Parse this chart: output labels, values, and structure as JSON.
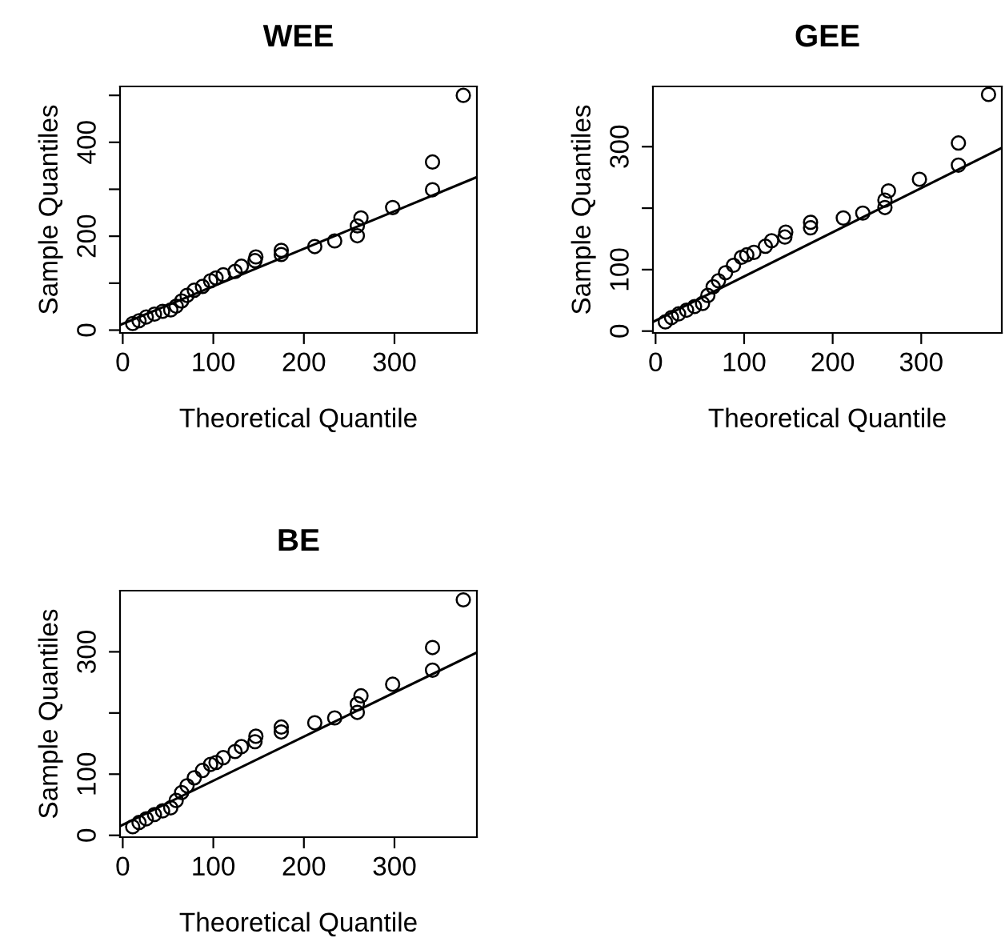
{
  "chart_data": [
    {
      "type": "scatter",
      "title": "WEE",
      "xlabel": "Theoretical Quantile",
      "ylabel": "Sample Quantiles",
      "grid": false,
      "legend": false,
      "xlim": [
        -3,
        391
      ],
      "ylim": [
        -6,
        519
      ],
      "xticks": [
        0,
        100,
        200,
        300
      ],
      "yticks": [
        0,
        {
          "value": 100,
          "label": null
        },
        200,
        {
          "value": 300,
          "label": null
        },
        400,
        {
          "value": 500,
          "label": null
        }
      ],
      "series": [
        {
          "color": "#000000",
          "marker": "circle",
          "x": [
            11,
            18,
            26,
            35,
            44,
            53,
            59,
            65,
            71,
            79,
            88,
            97,
            103,
            111,
            124,
            131,
            146,
            147,
            175,
            175,
            212,
            234,
            259,
            259,
            263,
            298,
            342,
            342,
            376
          ],
          "values": [
            14,
            20,
            28,
            34,
            40,
            43,
            51,
            62,
            74,
            85,
            93,
            105,
            111,
            118,
            125,
            136,
            148,
            156,
            161,
            170,
            178,
            190,
            201,
            222,
            239,
            261,
            299,
            358,
            500
          ]
        },
        {
          "type": "line",
          "color": "#000000",
          "x": [
            -3,
            391
          ],
          "values": [
            11,
            326
          ]
        }
      ]
    },
    {
      "type": "scatter",
      "title": "GEE",
      "xlabel": "Theoretical Quantile",
      "ylabel": "Sample Quantiles",
      "grid": false,
      "legend": false,
      "xlim": [
        -3,
        391
      ],
      "ylim": [
        -3,
        398
      ],
      "xticks": [
        0,
        100,
        200,
        300
      ],
      "yticks": [
        0,
        100,
        {
          "value": 200,
          "label": null
        },
        300
      ],
      "series": [
        {
          "color": "#000000",
          "marker": "circle",
          "x": [
            11,
            18,
            26,
            35,
            44,
            53,
            59,
            65,
            71,
            79,
            88,
            97,
            103,
            111,
            124,
            131,
            146,
            147,
            175,
            175,
            212,
            234,
            259,
            259,
            263,
            298,
            342,
            342,
            376
          ],
          "values": [
            15,
            22,
            28,
            34,
            40,
            45,
            58,
            72,
            82,
            95,
            107,
            120,
            124,
            128,
            138,
            147,
            153,
            161,
            168,
            177,
            184,
            192,
            201,
            213,
            228,
            247,
            270,
            306,
            385
          ]
        },
        {
          "type": "line",
          "color": "#000000",
          "x": [
            -3,
            391
          ],
          "values": [
            15,
            298
          ]
        }
      ]
    },
    {
      "type": "scatter",
      "title": "BE",
      "xlabel": "Theoretical Quantile",
      "ylabel": "Sample Quantiles",
      "grid": false,
      "legend": false,
      "xlim": [
        -3,
        391
      ],
      "ylim": [
        -3,
        400
      ],
      "xticks": [
        0,
        100,
        200,
        300
      ],
      "yticks": [
        0,
        100,
        {
          "value": 200,
          "label": null
        },
        300
      ],
      "series": [
        {
          "color": "#000000",
          "marker": "circle",
          "x": [
            11,
            18,
            26,
            35,
            44,
            53,
            59,
            65,
            71,
            79,
            88,
            97,
            103,
            111,
            124,
            131,
            146,
            147,
            175,
            175,
            212,
            234,
            259,
            259,
            263,
            298,
            342,
            342,
            376
          ],
          "values": [
            14,
            21,
            27,
            34,
            40,
            45,
            57,
            70,
            81,
            94,
            106,
            116,
            119,
            127,
            137,
            145,
            153,
            162,
            169,
            177,
            184,
            192,
            201,
            215,
            228,
            247,
            270,
            307,
            385
          ]
        },
        {
          "type": "line",
          "color": "#000000",
          "x": [
            -3,
            391
          ],
          "values": [
            15,
            299
          ]
        }
      ]
    }
  ]
}
